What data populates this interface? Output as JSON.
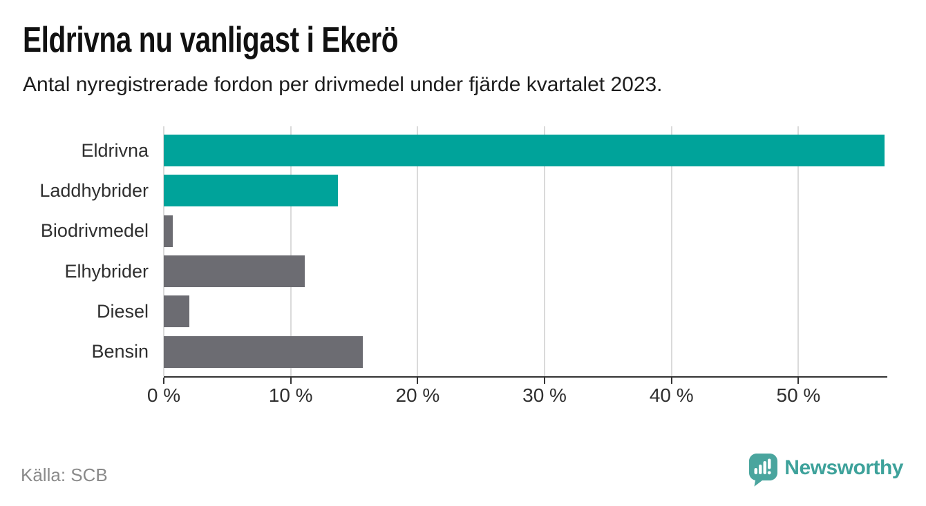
{
  "header": {
    "title": "Eldrivna nu vanligast i Ekerö",
    "subtitle": "Antal nyregistrerade fordon per drivmedel under fjärde kvartalet 2023."
  },
  "chart_data": {
    "type": "bar",
    "orientation": "horizontal",
    "title": "Eldrivna nu vanligast i Ekerö",
    "subtitle": "Antal nyregistrerade fordon per drivmedel under fjärde kvartalet 2023.",
    "categories": [
      "Eldrivna",
      "Laddhybrider",
      "Biodrivmedel",
      "Elhybrider",
      "Diesel",
      "Bensin"
    ],
    "values": [
      56.8,
      13.7,
      0.7,
      11.1,
      2.0,
      15.7
    ],
    "unit": "%",
    "bar_colors": [
      "#00a39a",
      "#00a39a",
      "#6c6c72",
      "#6c6c72",
      "#6c6c72",
      "#6c6c72"
    ],
    "xlim": [
      0,
      57
    ],
    "xticks": [
      0,
      10,
      20,
      30,
      40,
      50
    ],
    "xtick_labels": [
      "0 %",
      "10 %",
      "20 %",
      "30 %",
      "40 %",
      "50 %"
    ],
    "grid": "vertical",
    "legend": "none"
  },
  "footer": {
    "source": "Källa: SCB",
    "brand": "Newsworthy"
  },
  "colors": {
    "electric_bar": "#00a39a",
    "other_bar": "#6c6c72",
    "brand_teal": "#3ea29b",
    "badge_teal": "#4aa59e",
    "gridline": "#dadada",
    "axis": "#333333",
    "source_text": "#8a8a8a"
  }
}
